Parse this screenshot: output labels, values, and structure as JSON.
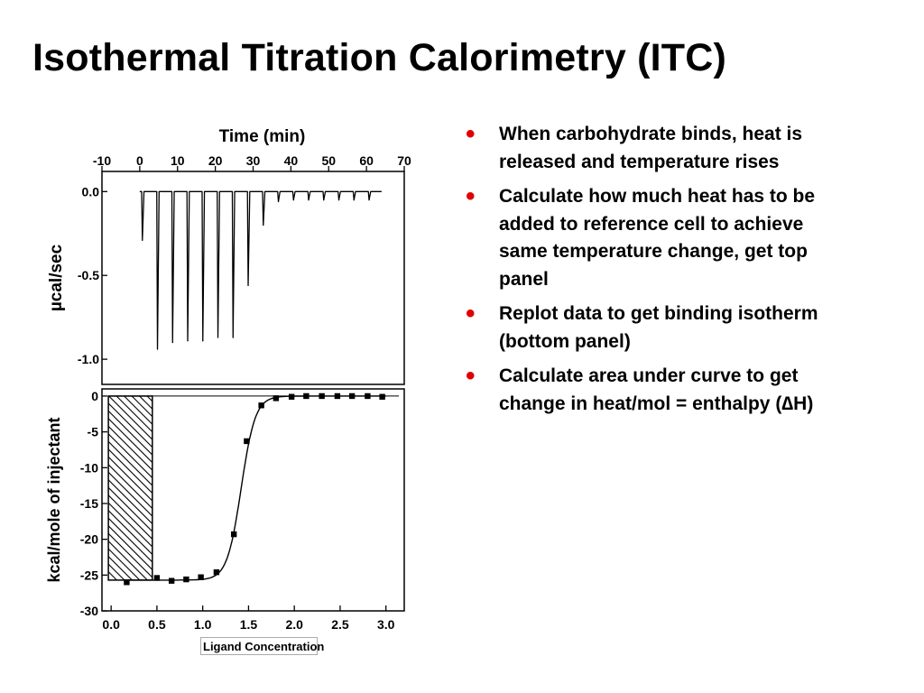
{
  "slide": {
    "title": "Isothermal Titration Calorimetry (ITC)",
    "bullets": [
      "When carbohydrate binds, heat is released and temperature rises",
      "Calculate how much heat has to be added to reference cell to achieve same temperature change, get top panel",
      "Replot data to get binding isotherm (bottom panel)",
      "Calculate area under curve to get change in heat/mol = enthalpy (∆H)"
    ],
    "bullet_color": "#e00000",
    "ligand_label": "Ligand Concentration"
  },
  "chart_data": [
    {
      "type": "line",
      "panel": "top",
      "xlabel": "Time (min)",
      "ylabel": "µcal/sec",
      "xlim": [
        -10,
        70
      ],
      "ylim": [
        -1.15,
        0.12
      ],
      "x_ticks": [
        "-10",
        "0",
        "10",
        "20",
        "30",
        "40",
        "50",
        "60",
        "70"
      ],
      "y_ticks": [
        "0.0",
        "-0.5",
        "-1.0"
      ],
      "baseline": 0.0,
      "x_start": 0,
      "x_end": 64,
      "injections": [
        {
          "time": 0.5,
          "peak": -0.29
        },
        {
          "time": 4.5,
          "peak": -0.94
        },
        {
          "time": 8.5,
          "peak": -0.9
        },
        {
          "time": 12.5,
          "peak": -0.89
        },
        {
          "time": 16.5,
          "peak": -0.89
        },
        {
          "time": 20.5,
          "peak": -0.87
        },
        {
          "time": 24.5,
          "peak": -0.87
        },
        {
          "time": 28.5,
          "peak": -0.56
        },
        {
          "time": 32.5,
          "peak": -0.2
        },
        {
          "time": 36.5,
          "peak": -0.06
        },
        {
          "time": 40.5,
          "peak": -0.05
        },
        {
          "time": 44.5,
          "peak": -0.05
        },
        {
          "time": 48.5,
          "peak": -0.05
        },
        {
          "time": 52.5,
          "peak": -0.05
        },
        {
          "time": 56.5,
          "peak": -0.05
        },
        {
          "time": 60.5,
          "peak": -0.05
        }
      ]
    },
    {
      "type": "scatter",
      "panel": "bottom",
      "xlabel": "",
      "ylabel": "kcal/mole of injectant",
      "xlim": [
        -0.1,
        3.2
      ],
      "ylim": [
        -30,
        1
      ],
      "x_ticks": [
        "0.0",
        "0.5",
        "1.0",
        "1.5",
        "2.0",
        "2.5",
        "3.0"
      ],
      "y_ticks": [
        "0",
        "-5",
        "-10",
        "-15",
        "-20",
        "-25",
        "-30"
      ],
      "points": [
        {
          "x": 0.17,
          "y": -26.0
        },
        {
          "x": 0.5,
          "y": -25.4
        },
        {
          "x": 0.66,
          "y": -25.8
        },
        {
          "x": 0.82,
          "y": -25.6
        },
        {
          "x": 0.98,
          "y": -25.3
        },
        {
          "x": 1.15,
          "y": -24.6
        },
        {
          "x": 1.34,
          "y": -19.3
        },
        {
          "x": 1.48,
          "y": -6.3
        },
        {
          "x": 1.64,
          "y": -1.3
        },
        {
          "x": 1.8,
          "y": -0.3
        },
        {
          "x": 1.97,
          "y": -0.1
        },
        {
          "x": 2.13,
          "y": 0.0
        },
        {
          "x": 2.3,
          "y": 0.0
        },
        {
          "x": 2.47,
          "y": 0.0
        },
        {
          "x": 2.63,
          "y": 0.0
        },
        {
          "x": 2.8,
          "y": 0.0
        },
        {
          "x": 2.96,
          "y": -0.1
        }
      ],
      "fit_curve": {
        "y_min": -25.7,
        "midpoint": 1.42,
        "steepness": 13
      },
      "shaded_area": {
        "x_from": -0.03,
        "x_to": 0.45,
        "y_from": 0,
        "y_to": -25.7,
        "pattern": "hatched"
      }
    }
  ]
}
